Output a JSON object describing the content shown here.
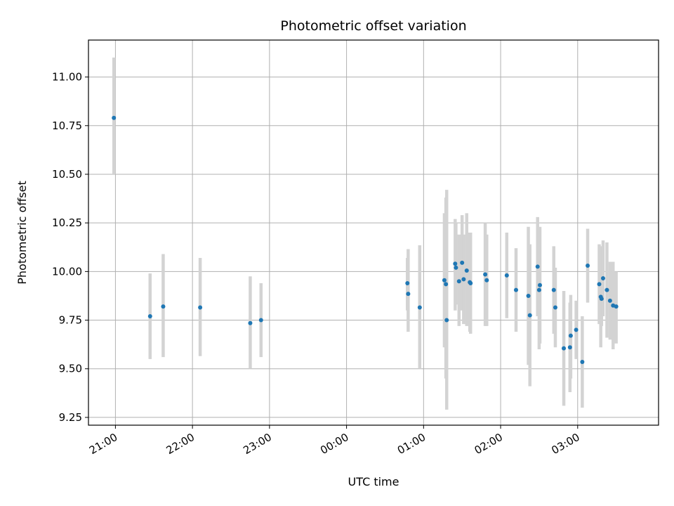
{
  "chart_data": {
    "type": "scatter",
    "title": "Photometric offset variation",
    "xlabel": "UTC time",
    "ylabel": "Photometric offset",
    "x_unit": "hours since 00:00 UTC",
    "xlim": [
      -3.35,
      4.05
    ],
    "ylim": [
      9.21,
      11.19
    ],
    "grid": true,
    "x_ticks": [
      {
        "value": -3,
        "label": "21:00"
      },
      {
        "value": -2,
        "label": "22:00"
      },
      {
        "value": -1,
        "label": "23:00"
      },
      {
        "value": 0,
        "label": "00:00"
      },
      {
        "value": 1,
        "label": "01:00"
      },
      {
        "value": 2,
        "label": "02:00"
      },
      {
        "value": 3,
        "label": "03:00"
      }
    ],
    "y_ticks": [
      {
        "value": 9.25,
        "label": "9.25"
      },
      {
        "value": 9.5,
        "label": "9.50"
      },
      {
        "value": 9.75,
        "label": "9.75"
      },
      {
        "value": 10.0,
        "label": "10.00"
      },
      {
        "value": 10.25,
        "label": "10.25"
      },
      {
        "value": 10.5,
        "label": "10.50"
      },
      {
        "value": 10.75,
        "label": "10.75"
      },
      {
        "value": 11.0,
        "label": "11.00"
      }
    ],
    "series": [
      {
        "name": "offset",
        "point_color": "#1f77b4",
        "errorbar_color": "#d3d3d3",
        "points": [
          {
            "x": -3.02,
            "y": 10.79,
            "lo": 10.5,
            "hi": 11.1
          },
          {
            "x": -2.55,
            "y": 9.77,
            "lo": 9.55,
            "hi": 9.99
          },
          {
            "x": -2.38,
            "y": 9.82,
            "lo": 9.56,
            "hi": 10.09
          },
          {
            "x": -1.9,
            "y": 9.815,
            "lo": 9.565,
            "hi": 10.07
          },
          {
            "x": -1.25,
            "y": 9.735,
            "lo": 9.5,
            "hi": 9.975
          },
          {
            "x": -1.11,
            "y": 9.75,
            "lo": 9.56,
            "hi": 9.94
          },
          {
            "x": 0.79,
            "y": 9.94,
            "lo": 9.8,
            "hi": 10.07
          },
          {
            "x": 0.8,
            "y": 9.885,
            "lo": 9.69,
            "hi": 10.115
          },
          {
            "x": 0.95,
            "y": 9.815,
            "lo": 9.5,
            "hi": 10.135
          },
          {
            "x": 1.27,
            "y": 9.955,
            "lo": 9.61,
            "hi": 10.3
          },
          {
            "x": 1.29,
            "y": 9.935,
            "lo": 9.45,
            "hi": 10.38
          },
          {
            "x": 1.3,
            "y": 9.75,
            "lo": 9.29,
            "hi": 10.42
          },
          {
            "x": 1.41,
            "y": 10.04,
            "lo": 9.8,
            "hi": 10.27
          },
          {
            "x": 1.42,
            "y": 10.02,
            "lo": 9.83,
            "hi": 10.25
          },
          {
            "x": 1.46,
            "y": 9.95,
            "lo": 9.72,
            "hi": 10.19
          },
          {
            "x": 1.5,
            "y": 10.045,
            "lo": 9.8,
            "hi": 10.29
          },
          {
            "x": 1.52,
            "y": 9.96,
            "lo": 9.73,
            "hi": 10.19
          },
          {
            "x": 1.56,
            "y": 10.005,
            "lo": 9.72,
            "hi": 10.3
          },
          {
            "x": 1.6,
            "y": 9.945,
            "lo": 9.69,
            "hi": 10.2
          },
          {
            "x": 1.61,
            "y": 9.94,
            "lo": 9.68,
            "hi": 10.2
          },
          {
            "x": 1.8,
            "y": 9.985,
            "lo": 9.72,
            "hi": 10.25
          },
          {
            "x": 1.82,
            "y": 9.955,
            "lo": 9.72,
            "hi": 10.19
          },
          {
            "x": 2.08,
            "y": 9.98,
            "lo": 9.76,
            "hi": 10.2
          },
          {
            "x": 2.2,
            "y": 9.905,
            "lo": 9.69,
            "hi": 10.12
          },
          {
            "x": 2.36,
            "y": 9.875,
            "lo": 9.52,
            "hi": 10.23
          },
          {
            "x": 2.38,
            "y": 9.775,
            "lo": 9.41,
            "hi": 10.14
          },
          {
            "x": 2.48,
            "y": 10.025,
            "lo": 9.77,
            "hi": 10.28
          },
          {
            "x": 2.5,
            "y": 9.905,
            "lo": 9.6,
            "hi": 10.21
          },
          {
            "x": 2.51,
            "y": 9.93,
            "lo": 9.63,
            "hi": 10.23
          },
          {
            "x": 2.69,
            "y": 9.905,
            "lo": 9.68,
            "hi": 10.13
          },
          {
            "x": 2.71,
            "y": 9.815,
            "lo": 9.61,
            "hi": 10.02
          },
          {
            "x": 2.82,
            "y": 9.605,
            "lo": 9.31,
            "hi": 9.9
          },
          {
            "x": 2.9,
            "y": 9.61,
            "lo": 9.38,
            "hi": 9.84
          },
          {
            "x": 2.91,
            "y": 9.67,
            "lo": 9.45,
            "hi": 9.88
          },
          {
            "x": 2.98,
            "y": 9.7,
            "lo": 9.55,
            "hi": 9.85
          },
          {
            "x": 3.06,
            "y": 9.535,
            "lo": 9.3,
            "hi": 9.77
          },
          {
            "x": 3.13,
            "y": 10.03,
            "lo": 9.84,
            "hi": 10.22
          },
          {
            "x": 3.28,
            "y": 9.935,
            "lo": 9.73,
            "hi": 10.14
          },
          {
            "x": 3.3,
            "y": 9.87,
            "lo": 9.61,
            "hi": 10.13
          },
          {
            "x": 3.31,
            "y": 9.86,
            "lo": 9.72,
            "hi": 10.0
          },
          {
            "x": 3.33,
            "y": 9.965,
            "lo": 9.77,
            "hi": 10.16
          },
          {
            "x": 3.38,
            "y": 9.905,
            "lo": 9.66,
            "hi": 10.15
          },
          {
            "x": 3.42,
            "y": 9.85,
            "lo": 9.65,
            "hi": 10.05
          },
          {
            "x": 3.46,
            "y": 9.825,
            "lo": 9.6,
            "hi": 10.05
          },
          {
            "x": 3.5,
            "y": 9.82,
            "lo": 9.63,
            "hi": 10.0
          }
        ]
      }
    ]
  }
}
